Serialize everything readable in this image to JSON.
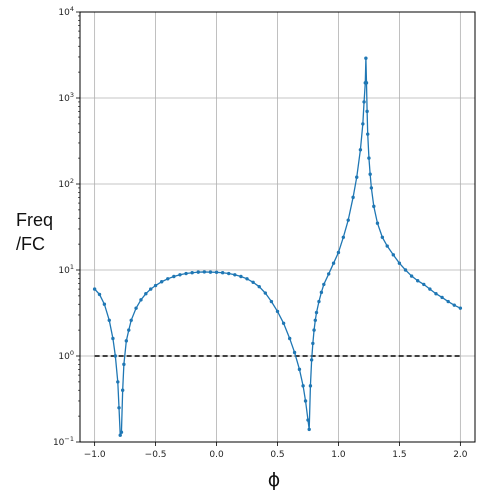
{
  "chart_data": {
    "type": "line",
    "title": "",
    "xlabel": "ϕ",
    "ylabel_lines": [
      "Freq",
      "/FC"
    ],
    "xlim": [
      -1.12,
      2.12
    ],
    "ylim": [
      0.1,
      10000
    ],
    "yscale": "log",
    "grid": true,
    "x_ticks": [
      -1.0,
      -0.5,
      0.0,
      0.5,
      1.0,
      1.5,
      2.0
    ],
    "x_tick_labels": [
      "−1.0",
      "−0.5",
      "0.0",
      "0.5",
      "1.0",
      "1.5",
      "2.0"
    ],
    "y_ticks": [
      0.1,
      1,
      10,
      100,
      1000,
      10000
    ],
    "y_tick_labels": [
      {
        "base": "10",
        "exp": "−1"
      },
      {
        "base": "10",
        "exp": "0"
      },
      {
        "base": "10",
        "exp": "1"
      },
      {
        "base": "10",
        "exp": "2"
      },
      {
        "base": "10",
        "exp": "3"
      },
      {
        "base": "10",
        "exp": "4"
      }
    ],
    "reference_line": {
      "y": 1,
      "x_range": [
        -1.0,
        2.0
      ],
      "style": "dashed",
      "color": "#000000"
    },
    "series": [
      {
        "color": "#1f77b4",
        "marker": "dot",
        "x": [
          -1.0,
          -0.96,
          -0.92,
          -0.88,
          -0.85,
          -0.83,
          -0.81,
          -0.8,
          -0.79,
          -0.78,
          -0.77,
          -0.76,
          -0.74,
          -0.72,
          -0.7,
          -0.66,
          -0.62,
          -0.58,
          -0.54,
          -0.5,
          -0.45,
          -0.4,
          -0.35,
          -0.3,
          -0.25,
          -0.2,
          -0.15,
          -0.1,
          -0.05,
          0.0,
          0.05,
          0.1,
          0.15,
          0.2,
          0.25,
          0.3,
          0.35,
          0.4,
          0.45,
          0.5,
          0.55,
          0.6,
          0.64,
          0.68,
          0.71,
          0.73,
          0.75,
          0.76,
          0.77,
          0.78,
          0.79,
          0.8,
          0.81,
          0.82,
          0.84,
          0.86,
          0.88,
          0.92,
          0.96,
          1.0,
          1.04,
          1.08,
          1.12,
          1.15,
          1.18,
          1.2,
          1.21,
          1.22,
          1.225,
          1.23,
          1.235,
          1.24,
          1.25,
          1.26,
          1.27,
          1.29,
          1.32,
          1.36,
          1.4,
          1.45,
          1.5,
          1.55,
          1.6,
          1.65,
          1.7,
          1.75,
          1.8,
          1.85,
          1.9,
          1.95,
          2.0
        ],
        "y": [
          6.0,
          5.2,
          4.0,
          2.6,
          1.6,
          1.0,
          0.5,
          0.25,
          0.12,
          0.13,
          0.4,
          0.8,
          1.5,
          2.0,
          2.6,
          3.6,
          4.5,
          5.3,
          6.0,
          6.6,
          7.3,
          7.9,
          8.4,
          8.8,
          9.1,
          9.3,
          9.45,
          9.5,
          9.45,
          9.4,
          9.3,
          9.1,
          8.8,
          8.4,
          7.9,
          7.2,
          6.4,
          5.4,
          4.3,
          3.3,
          2.4,
          1.6,
          1.1,
          0.7,
          0.45,
          0.3,
          0.18,
          0.14,
          0.45,
          0.9,
          1.4,
          2.0,
          2.6,
          3.2,
          4.3,
          5.5,
          6.8,
          9.0,
          12.0,
          16.0,
          24.0,
          38.0,
          70.0,
          120.0,
          250.0,
          500.0,
          900.0,
          1500.0,
          2900.0,
          1500.0,
          700.0,
          380.0,
          200.0,
          130.0,
          90.0,
          55.0,
          35.0,
          24.0,
          19.0,
          15.0,
          12.0,
          10.0,
          8.5,
          7.5,
          6.8,
          6.0,
          5.3,
          4.8,
          4.3,
          3.9,
          3.6
        ]
      }
    ]
  }
}
